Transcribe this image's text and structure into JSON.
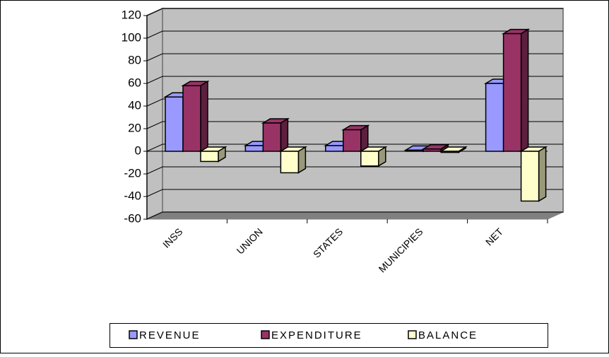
{
  "chart_data": {
    "type": "bar3d",
    "categories": [
      "INSS",
      "UNION",
      "STATES",
      "MUNICIPIES",
      "NET"
    ],
    "series": [
      {
        "name": "REVENUE",
        "color": "#9999ff",
        "values": [
          48,
          5,
          5,
          1,
          60
        ]
      },
      {
        "name": "EXPENDITURE",
        "color": "#993366",
        "values": [
          58,
          25,
          19,
          2,
          104
        ]
      },
      {
        "name": "BALANCE",
        "color": "#ffffcc",
        "values": [
          -9,
          -19,
          -13,
          -1,
          -44
        ]
      }
    ],
    "ylim": [
      -60,
      120
    ],
    "yticks": [
      -60,
      -40,
      -20,
      0,
      20,
      40,
      60,
      80,
      100,
      120
    ],
    "grid": true,
    "legend": "bottom"
  }
}
